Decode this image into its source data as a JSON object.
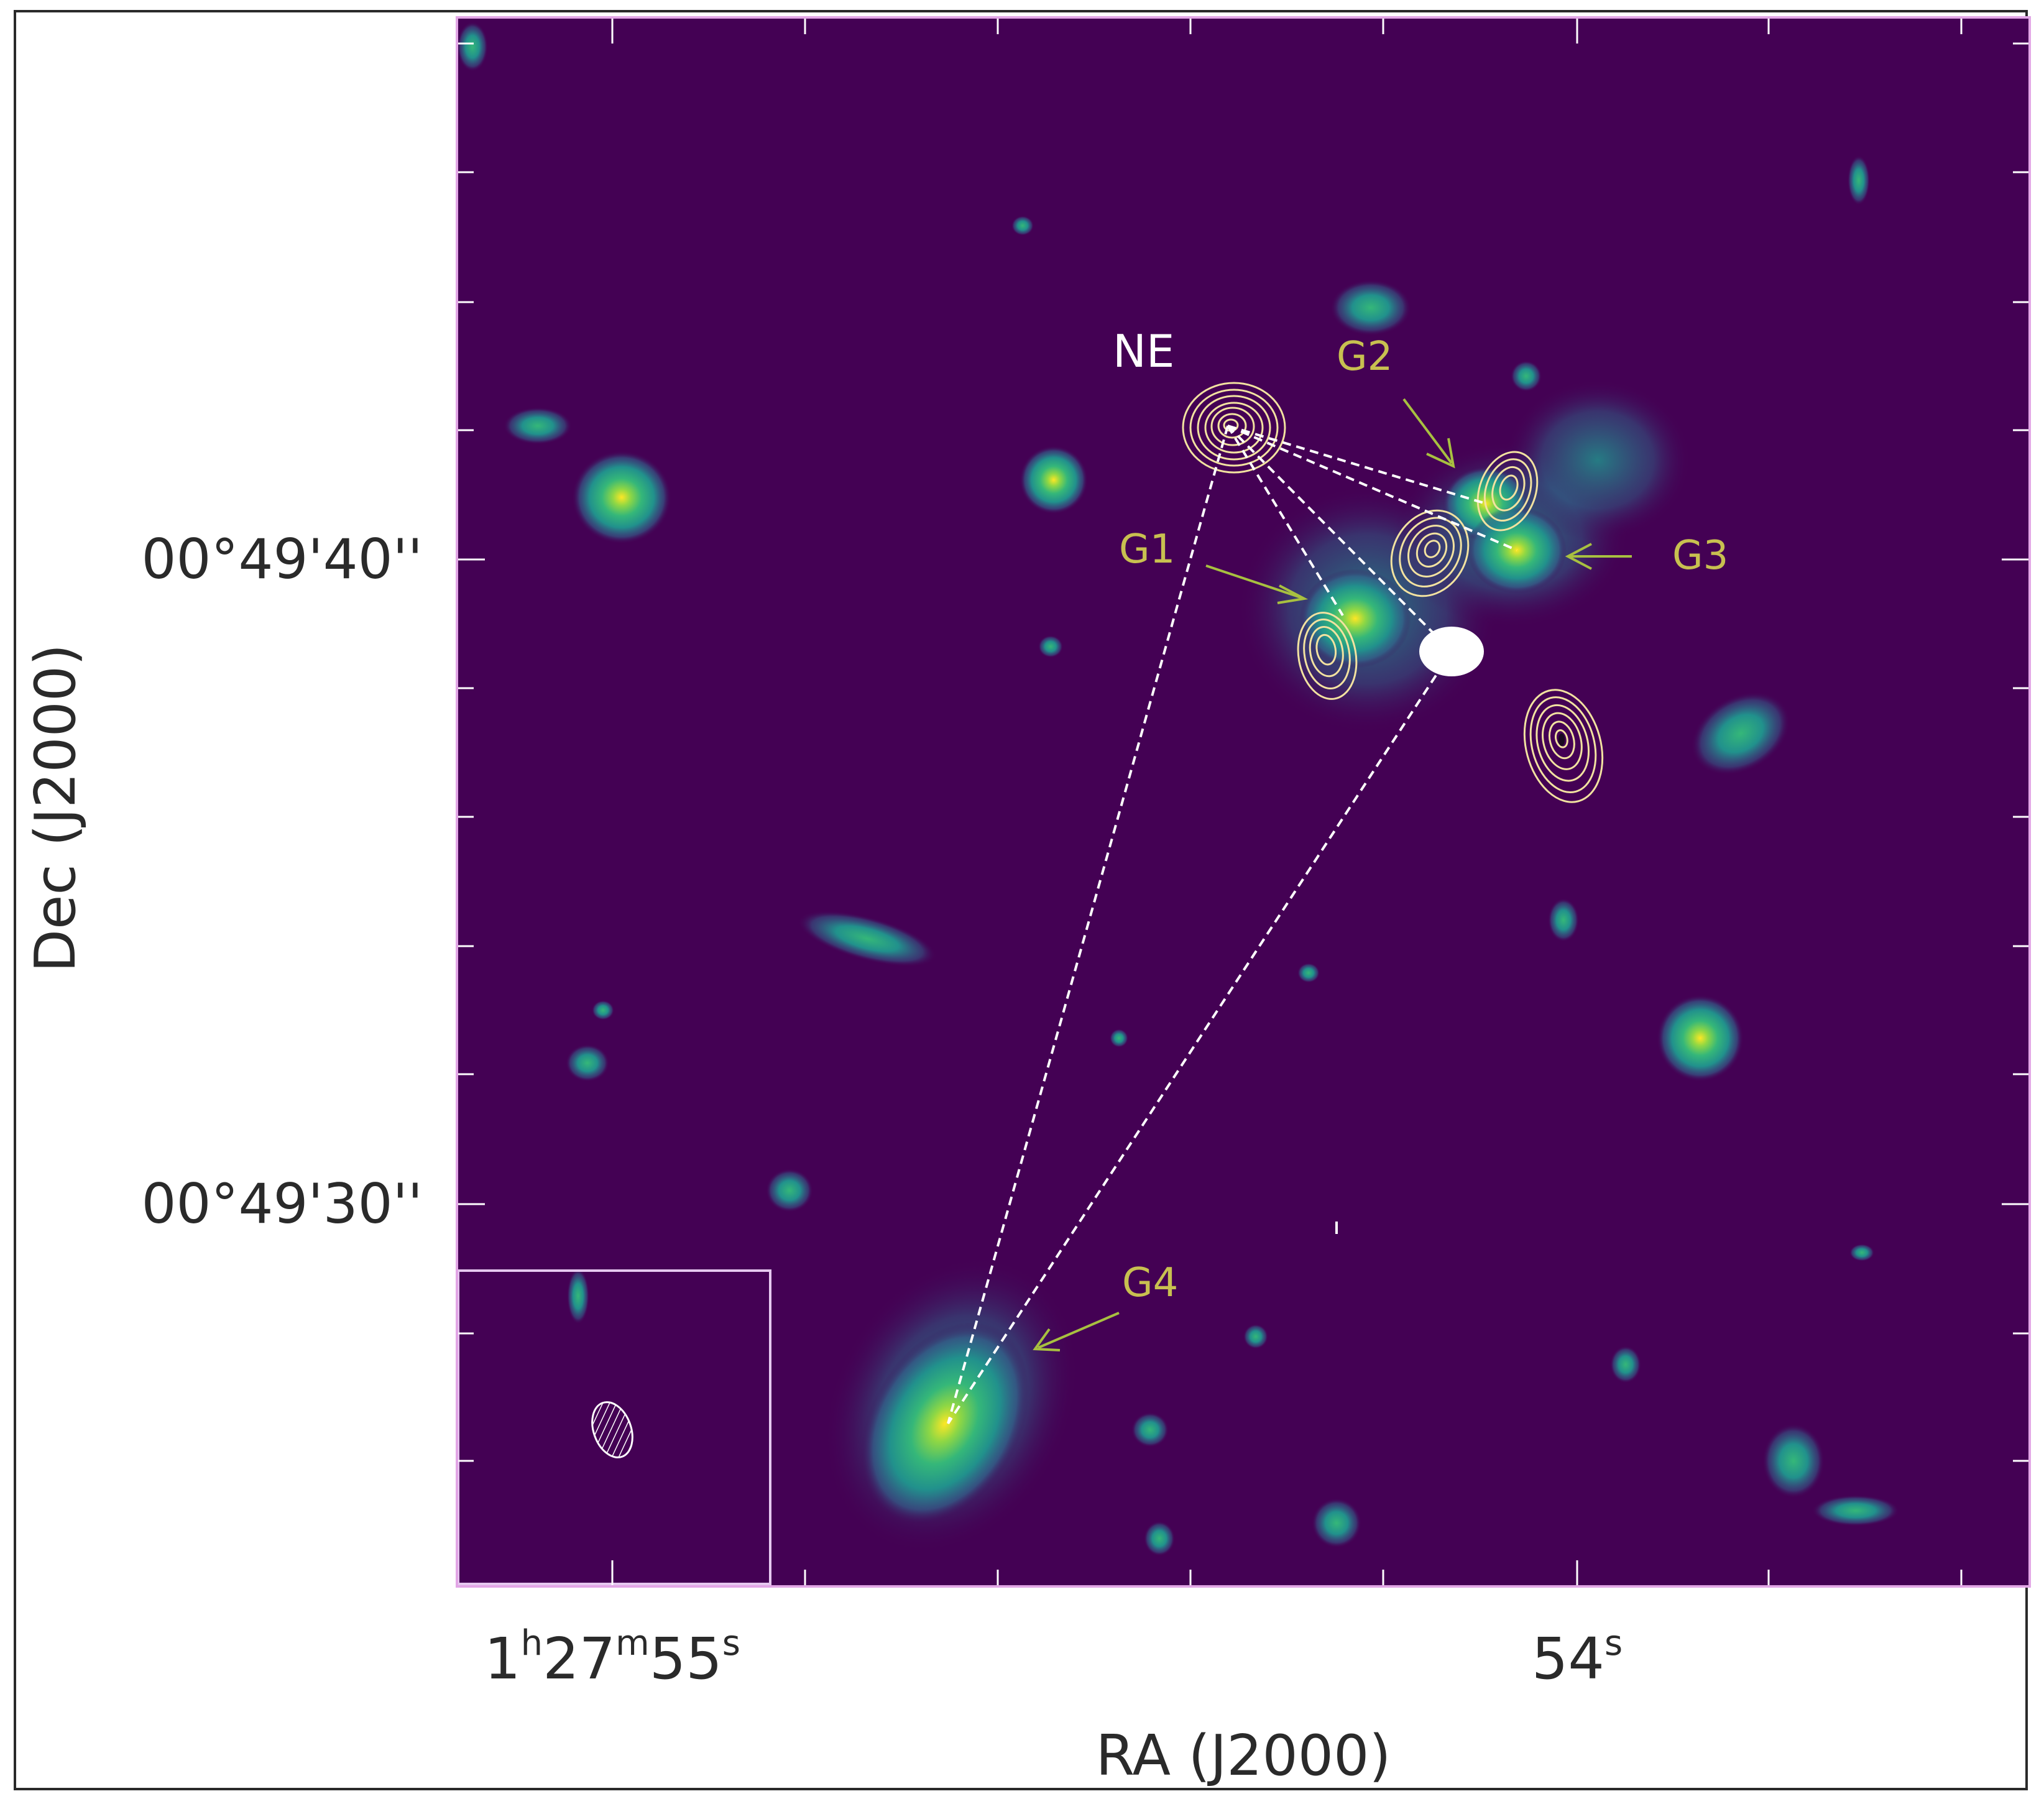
{
  "axes": {
    "xlabel": "RA (J2000)",
    "ylabel": "Dec (J2000)",
    "x_ticks": [
      {
        "h": "1",
        "m": "27",
        "s": "55"
      },
      {
        "s": "54"
      }
    ],
    "y_ticks": [
      "00°49'40''",
      "00°49'30''"
    ]
  },
  "labels": {
    "ne": "NE",
    "g1": "G1",
    "g2": "G2",
    "g3": "G3",
    "g4": "G4"
  },
  "colors": {
    "background": "#440154",
    "contours": "#f2e2a0",
    "galaxy_labels": "#c8c050",
    "arrows": "#a8c040",
    "lines": "#ffffff",
    "axis_frame": "#e2a6e6"
  }
}
